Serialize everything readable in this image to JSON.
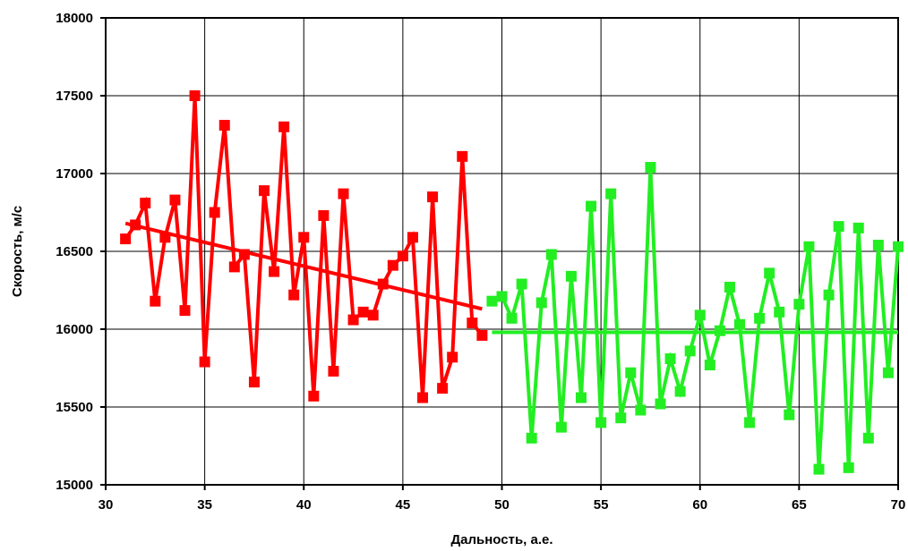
{
  "chart_data": {
    "type": "line",
    "xlabel": "Дальность, а.е.",
    "ylabel": "Скорость, м/с",
    "xlim": [
      30,
      70
    ],
    "ylim": [
      15000,
      18000
    ],
    "x_ticks": [
      30,
      35,
      40,
      45,
      50,
      55,
      60,
      65,
      70
    ],
    "y_ticks": [
      15000,
      15500,
      16000,
      16500,
      17000,
      17500,
      18000
    ],
    "grid": true,
    "legend": "none",
    "colors": {
      "series1": "#ff0000",
      "series2": "#22ee22"
    },
    "series": [
      {
        "marker": "square",
        "x": [
          31.0,
          31.5,
          32.0,
          32.5,
          33.0,
          33.5,
          34.0,
          34.5,
          35.0,
          35.5,
          36.0,
          36.5,
          37.0,
          37.5,
          38.0,
          38.5,
          39.0,
          39.5,
          40.0,
          40.5,
          41.0,
          41.5,
          42.0,
          42.5,
          43.0,
          43.5,
          44.0,
          44.5,
          45.0,
          45.5,
          46.0,
          46.5,
          47.0,
          47.5,
          48.0,
          48.5,
          49.0
        ],
        "y": [
          16580,
          16670,
          16810,
          16180,
          16590,
          16830,
          16120,
          17500,
          15790,
          16750,
          17310,
          16400,
          16480,
          15660,
          16890,
          16370,
          17300,
          16220,
          16590,
          15570,
          16730,
          15730,
          16870,
          16060,
          16110,
          16090,
          16290,
          16410,
          16470,
          16590,
          15560,
          16850,
          15620,
          15820,
          17110,
          16040,
          15960
        ]
      },
      {
        "marker": "square",
        "x": [
          49.5,
          50.0,
          50.5,
          51.0,
          51.5,
          52.0,
          52.5,
          53.0,
          53.5,
          54.0,
          54.5,
          55.0,
          55.5,
          56.0,
          56.5,
          57.0,
          57.5,
          58.0,
          58.5,
          59.0,
          59.5,
          60.0,
          60.5,
          61.0,
          61.5,
          62.0,
          62.5,
          63.0,
          63.5,
          64.0,
          64.5,
          65.0,
          65.5,
          66.0,
          66.5,
          67.0,
          67.5,
          68.0,
          68.5,
          69.0,
          69.5,
          70.0
        ],
        "y": [
          16180,
          16210,
          16070,
          16290,
          15300,
          16170,
          16480,
          15370,
          16340,
          15560,
          16790,
          15400,
          16870,
          15430,
          15720,
          15480,
          17040,
          15520,
          15810,
          15600,
          15860,
          16090,
          15770,
          15990,
          16270,
          16030,
          15400,
          16070,
          16360,
          16110,
          15450,
          16160,
          16530,
          15100,
          16220,
          16660,
          15110,
          16650,
          15300,
          16540,
          15720,
          16530
        ]
      }
    ],
    "trendlines": [
      {
        "color": "#ff0000",
        "x": [
          31.0,
          49.0
        ],
        "y": [
          16680,
          16130
        ]
      },
      {
        "color": "#22ee22",
        "x": [
          49.5,
          70.0
        ],
        "y": [
          15980,
          15980
        ]
      }
    ]
  }
}
